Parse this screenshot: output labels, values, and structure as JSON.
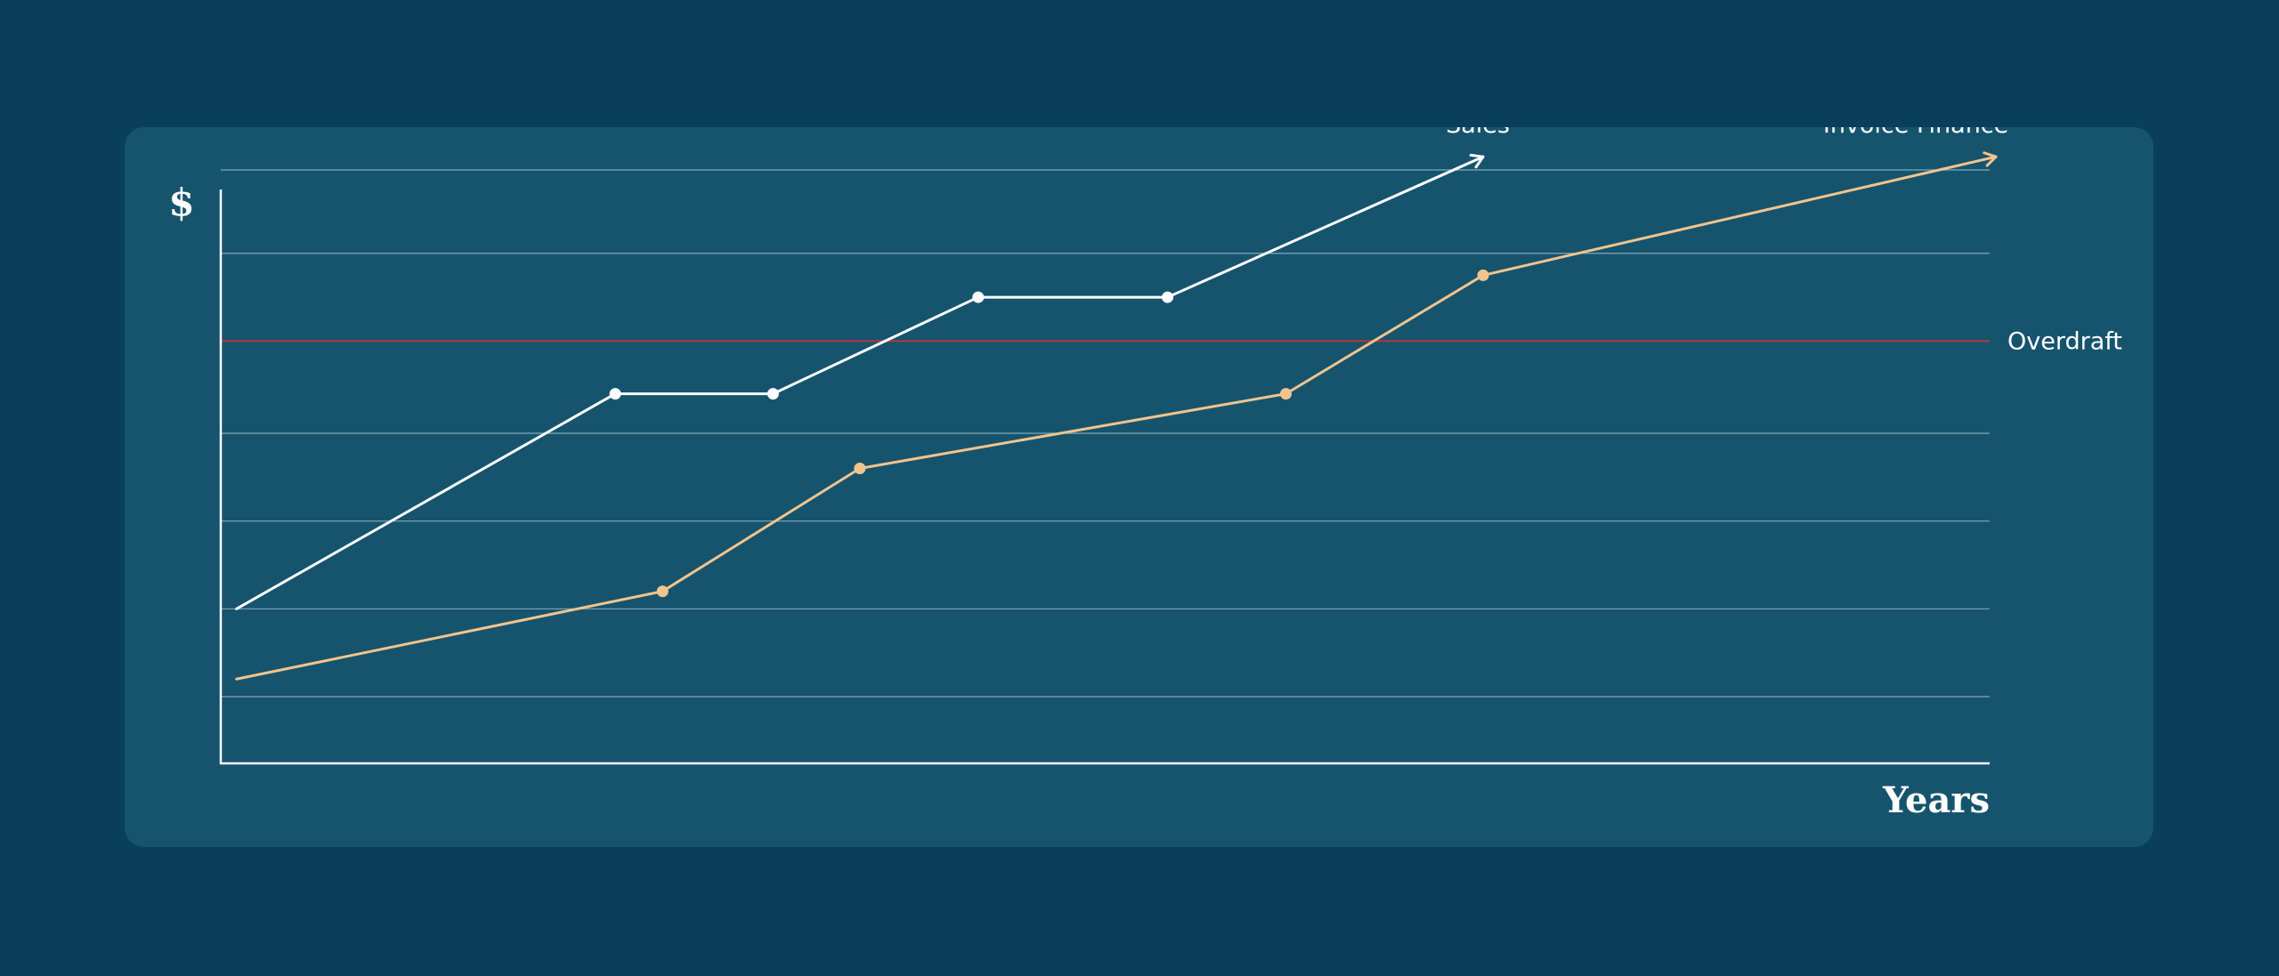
{
  "chart_data": {
    "type": "line",
    "title": "",
    "ylabel": "$",
    "xlabel": "Years",
    "ylim": [
      0,
      7.5
    ],
    "xlim": [
      0,
      12
    ],
    "grid": true,
    "series": [
      {
        "name": "Sales",
        "color": "#ffffff",
        "points": [
          [
            0.1,
            1.75
          ],
          [
            2.5,
            4.2
          ],
          [
            3.5,
            4.2
          ],
          [
            4.8,
            5.3
          ],
          [
            6.0,
            5.3
          ],
          [
            8.0,
            6.9
          ]
        ],
        "markers": [
          1,
          2,
          3,
          4
        ],
        "arrow": true
      },
      {
        "name": "Invoice Finance",
        "color": "#f2c48d",
        "points": [
          [
            0.1,
            0.95
          ],
          [
            2.8,
            1.95
          ],
          [
            4.05,
            3.35
          ],
          [
            6.75,
            4.2
          ],
          [
            8.0,
            5.55
          ],
          [
            11.25,
            6.9
          ]
        ],
        "markers": [
          1,
          2,
          3,
          4
        ],
        "arrow": true
      }
    ],
    "reference_lines": [
      {
        "name": "Overdraft",
        "y": 4.8,
        "color": "#b8363a"
      }
    ],
    "gridlines_y": [
      0.75,
      1.75,
      2.75,
      3.75,
      5.8,
      6.75
    ]
  }
}
